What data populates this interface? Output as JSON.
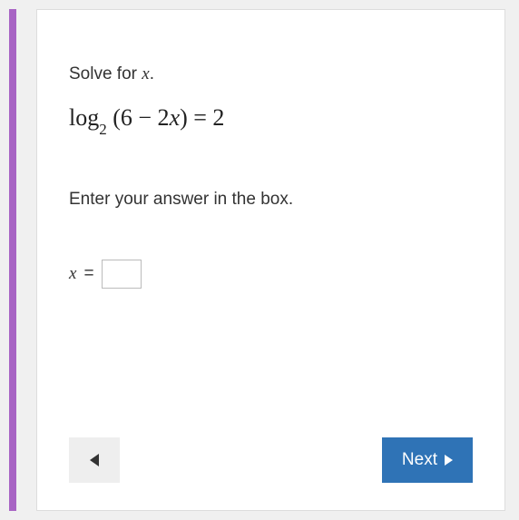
{
  "accent_color": "#a864c4",
  "card": {
    "background": "#ffffff",
    "border_color": "#dddddd"
  },
  "question": {
    "prompt_prefix": "Solve for ",
    "prompt_var": "x",
    "prompt_suffix": ".",
    "equation": {
      "log_text": "log",
      "base": "2",
      "argument_open": " (6 − 2",
      "argument_var": "x",
      "argument_close": ") = 2"
    },
    "instruction": "Enter your answer in the box.",
    "answer_var": "x",
    "answer_equals": " = ",
    "answer_value": ""
  },
  "nav": {
    "next_label": "Next"
  },
  "style": {
    "next_bg": "#2f73b6",
    "next_fg": "#ffffff",
    "prev_bg": "#eeeeee",
    "prev_icon": "#333333",
    "text_color": "#333333",
    "equation_fontsize": 26,
    "body_fontsize": 19
  }
}
